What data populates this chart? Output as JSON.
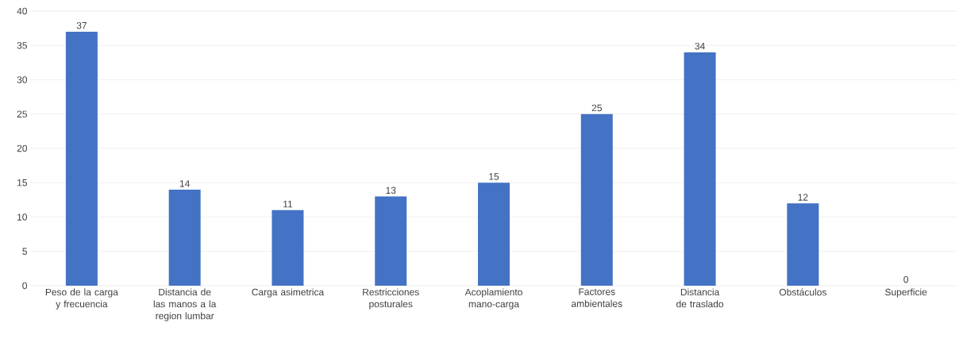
{
  "chart_data": {
    "type": "bar",
    "categories": [
      "Peso de la carga y frecuencia",
      "Distancia de las manos a la region lumbar",
      "Carga asimetrica",
      "Restricciones posturales",
      "Acoplamiento mano-carga",
      "Factores ambientales",
      "Distancia de traslado",
      "Obstáculos",
      "Superficie"
    ],
    "values": [
      37,
      14,
      11,
      13,
      15,
      25,
      34,
      12,
      0
    ],
    "color": "#4472c4",
    "ylim": [
      0,
      40
    ],
    "yticks": [
      0,
      5,
      10,
      15,
      20,
      25,
      30,
      35,
      40
    ],
    "grid": "y",
    "data_labels": true
  }
}
